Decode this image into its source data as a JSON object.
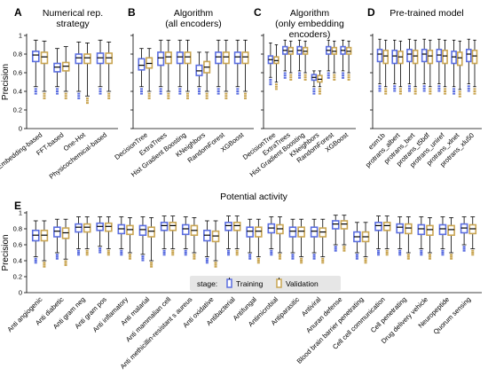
{
  "colors": {
    "training": "#5b6ee0",
    "validation": "#c9a552",
    "whisker": "#000000",
    "legend_bg": "#e6e6e6"
  },
  "legend": {
    "title": "stage:",
    "items": [
      "Training",
      "Validation"
    ]
  },
  "chart_data": [
    {
      "type": "box",
      "panel": "A",
      "title": "Numerical rep.\nstrategy",
      "ylabel": "Precision",
      "ylim": [
        0,
        1
      ],
      "yticks": [
        "0",
        "0.2",
        "0.4",
        "0.6",
        "0.8",
        "1"
      ],
      "categories": [
        "Embedding-based",
        "FFT-based",
        "One-Hot",
        "Physicochemical-based"
      ],
      "series": [
        {
          "stats": [
            [
              0.45,
              0.72,
              0.79,
              0.83,
              0.95
            ],
            [
              0.45,
              0.61,
              0.66,
              0.7,
              0.86
            ],
            [
              0.4,
              0.7,
              0.76,
              0.8,
              0.93
            ],
            [
              0.45,
              0.7,
              0.76,
              0.81,
              0.95
            ]
          ]
        },
        {
          "stats": [
            [
              0.4,
              0.7,
              0.77,
              0.82,
              0.94
            ],
            [
              0.4,
              0.62,
              0.67,
              0.71,
              0.88
            ],
            [
              0.35,
              0.7,
              0.76,
              0.8,
              0.92
            ],
            [
              0.4,
              0.7,
              0.76,
              0.81,
              0.93
            ]
          ]
        }
      ]
    },
    {
      "type": "box",
      "panel": "B",
      "title": "Algorithm\n(all encoders)",
      "ylim": [
        0,
        1
      ],
      "categories": [
        "DecisionTree",
        "ExtraTrees",
        "Hist Gradient Boosting",
        "KNeighbors",
        "RandomForest",
        "XGBoost"
      ],
      "series": [
        {
          "stats": [
            [
              0.45,
              0.63,
              0.68,
              0.75,
              0.86
            ],
            [
              0.45,
              0.68,
              0.76,
              0.82,
              0.95
            ],
            [
              0.45,
              0.7,
              0.77,
              0.82,
              0.95
            ],
            [
              0.45,
              0.57,
              0.62,
              0.68,
              0.82
            ],
            [
              0.45,
              0.7,
              0.77,
              0.82,
              0.95
            ],
            [
              0.45,
              0.7,
              0.77,
              0.82,
              0.95
            ]
          ]
        },
        {
          "stats": [
            [
              0.4,
              0.65,
              0.7,
              0.76,
              0.86
            ],
            [
              0.4,
              0.7,
              0.77,
              0.82,
              0.95
            ],
            [
              0.4,
              0.7,
              0.77,
              0.82,
              0.95
            ],
            [
              0.4,
              0.6,
              0.66,
              0.72,
              0.82
            ],
            [
              0.4,
              0.7,
              0.77,
              0.82,
              0.95
            ],
            [
              0.4,
              0.7,
              0.77,
              0.82,
              0.95
            ]
          ]
        }
      ]
    },
    {
      "type": "box",
      "panel": "C",
      "title": "Algorithm\n(only embedding\nencoders)",
      "ylim": [
        0,
        1
      ],
      "categories": [
        "DecisionTree",
        "ExtraTrees",
        "Hist Gradient Boosting",
        "KNeighbors",
        "RandomForest",
        "XGBoost"
      ],
      "series": [
        {
          "stats": [
            [
              0.55,
              0.7,
              0.74,
              0.78,
              0.92
            ],
            [
              0.62,
              0.8,
              0.84,
              0.88,
              0.95
            ],
            [
              0.62,
              0.8,
              0.84,
              0.88,
              0.95
            ],
            [
              0.45,
              0.52,
              0.55,
              0.58,
              0.62
            ],
            [
              0.62,
              0.8,
              0.84,
              0.88,
              0.95
            ],
            [
              0.62,
              0.8,
              0.84,
              0.88,
              0.95
            ]
          ]
        },
        {
          "stats": [
            [
              0.5,
              0.7,
              0.73,
              0.77,
              0.9
            ],
            [
              0.6,
              0.8,
              0.83,
              0.87,
              0.94
            ],
            [
              0.6,
              0.8,
              0.83,
              0.87,
              0.94
            ],
            [
              0.45,
              0.5,
              0.53,
              0.57,
              0.62
            ],
            [
              0.6,
              0.8,
              0.83,
              0.87,
              0.94
            ],
            [
              0.6,
              0.8,
              0.83,
              0.87,
              0.94
            ]
          ]
        }
      ]
    },
    {
      "type": "box",
      "panel": "D",
      "title": "Pre-trained model",
      "ylim": [
        0,
        1
      ],
      "categories": [
        "esm1b",
        "protrans_albert",
        "protrans_bert",
        "protrans_t5bdf",
        "protrans_uniref",
        "protrans_xlnet",
        "protrans_xlu50"
      ],
      "series": [
        {
          "stats": [
            [
              0.48,
              0.72,
              0.8,
              0.85,
              0.96
            ],
            [
              0.48,
              0.7,
              0.78,
              0.84,
              0.95
            ],
            [
              0.48,
              0.72,
              0.8,
              0.85,
              0.96
            ],
            [
              0.48,
              0.72,
              0.8,
              0.85,
              0.96
            ],
            [
              0.48,
              0.72,
              0.79,
              0.85,
              0.96
            ],
            [
              0.45,
              0.7,
              0.77,
              0.83,
              0.95
            ],
            [
              0.48,
              0.72,
              0.8,
              0.85,
              0.96
            ]
          ]
        },
        {
          "stats": [
            [
              0.45,
              0.7,
              0.78,
              0.84,
              0.95
            ],
            [
              0.45,
              0.7,
              0.77,
              0.83,
              0.94
            ],
            [
              0.45,
              0.7,
              0.78,
              0.84,
              0.95
            ],
            [
              0.45,
              0.7,
              0.78,
              0.84,
              0.95
            ],
            [
              0.45,
              0.7,
              0.78,
              0.84,
              0.95
            ],
            [
              0.42,
              0.68,
              0.76,
              0.82,
              0.94
            ],
            [
              0.45,
              0.7,
              0.78,
              0.84,
              0.95
            ]
          ]
        }
      ]
    },
    {
      "type": "box",
      "panel": "E",
      "title": "Potential activity",
      "ylabel": "Precision",
      "ylim": [
        0,
        1
      ],
      "yticks": [
        "0",
        "0.2",
        "0.4",
        "0.6",
        "0.8",
        "1"
      ],
      "categories": [
        "Anti angiogenic",
        "Anti diabetic",
        "Anti gram neg",
        "Anti gram pos",
        "Anti inflamatory",
        "Anti malarial",
        "Anti mammalian cell",
        "Anti methicillin-resistant s aureus",
        "Anti oxidative",
        "Antibacterial",
        "Antifungal",
        "Antimicrobial",
        "Antiparasitic",
        "Antiviral",
        "Anuran defense",
        "Blood brain barrier penetrating",
        "Cell cell communication",
        "Cell penetrating",
        "Drug delivery vehicle",
        "Neuropeptide",
        "Quorum sensing"
      ],
      "series": [
        {
          "stats": [
            [
              0.45,
              0.65,
              0.72,
              0.78,
              0.9
            ],
            [
              0.5,
              0.7,
              0.77,
              0.82,
              0.92
            ],
            [
              0.55,
              0.76,
              0.82,
              0.86,
              0.95
            ],
            [
              0.58,
              0.78,
              0.83,
              0.87,
              0.95
            ],
            [
              0.55,
              0.74,
              0.8,
              0.85,
              0.95
            ],
            [
              0.48,
              0.72,
              0.79,
              0.84,
              0.95
            ],
            [
              0.55,
              0.78,
              0.84,
              0.88,
              0.96
            ],
            [
              0.55,
              0.73,
              0.8,
              0.85,
              0.95
            ],
            [
              0.45,
              0.65,
              0.72,
              0.78,
              0.9
            ],
            [
              0.55,
              0.78,
              0.84,
              0.88,
              0.96
            ],
            [
              0.5,
              0.7,
              0.77,
              0.82,
              0.92
            ],
            [
              0.55,
              0.75,
              0.81,
              0.86,
              0.95
            ],
            [
              0.5,
              0.7,
              0.77,
              0.82,
              0.92
            ],
            [
              0.5,
              0.7,
              0.77,
              0.82,
              0.92
            ],
            [
              0.6,
              0.8,
              0.86,
              0.9,
              0.97
            ],
            [
              0.5,
              0.64,
              0.7,
              0.76,
              0.88
            ],
            [
              0.55,
              0.78,
              0.84,
              0.88,
              0.96
            ],
            [
              0.55,
              0.75,
              0.82,
              0.86,
              0.95
            ],
            [
              0.55,
              0.73,
              0.8,
              0.85,
              0.95
            ],
            [
              0.55,
              0.73,
              0.8,
              0.85,
              0.95
            ],
            [
              0.6,
              0.75,
              0.81,
              0.86,
              0.95
            ]
          ]
        },
        {
          "stats": [
            [
              0.4,
              0.65,
              0.72,
              0.78,
              0.9
            ],
            [
              0.42,
              0.68,
              0.75,
              0.81,
              0.92
            ],
            [
              0.55,
              0.76,
              0.82,
              0.86,
              0.95
            ],
            [
              0.55,
              0.77,
              0.83,
              0.87,
              0.95
            ],
            [
              0.5,
              0.73,
              0.79,
              0.84,
              0.94
            ],
            [
              0.4,
              0.7,
              0.77,
              0.82,
              0.94
            ],
            [
              0.55,
              0.78,
              0.84,
              0.88,
              0.96
            ],
            [
              0.5,
              0.72,
              0.78,
              0.84,
              0.94
            ],
            [
              0.4,
              0.64,
              0.71,
              0.77,
              0.9
            ],
            [
              0.55,
              0.78,
              0.84,
              0.88,
              0.96
            ],
            [
              0.45,
              0.7,
              0.77,
              0.82,
              0.92
            ],
            [
              0.5,
              0.74,
              0.8,
              0.85,
              0.95
            ],
            [
              0.45,
              0.7,
              0.77,
              0.82,
              0.92
            ],
            [
              0.45,
              0.7,
              0.76,
              0.81,
              0.92
            ],
            [
              0.6,
              0.8,
              0.86,
              0.9,
              0.97
            ],
            [
              0.45,
              0.64,
              0.7,
              0.76,
              0.88
            ],
            [
              0.55,
              0.78,
              0.84,
              0.88,
              0.96
            ],
            [
              0.5,
              0.74,
              0.81,
              0.86,
              0.95
            ],
            [
              0.5,
              0.72,
              0.79,
              0.84,
              0.94
            ],
            [
              0.5,
              0.72,
              0.79,
              0.84,
              0.94
            ],
            [
              0.55,
              0.74,
              0.8,
              0.85,
              0.95
            ]
          ]
        }
      ]
    }
  ]
}
